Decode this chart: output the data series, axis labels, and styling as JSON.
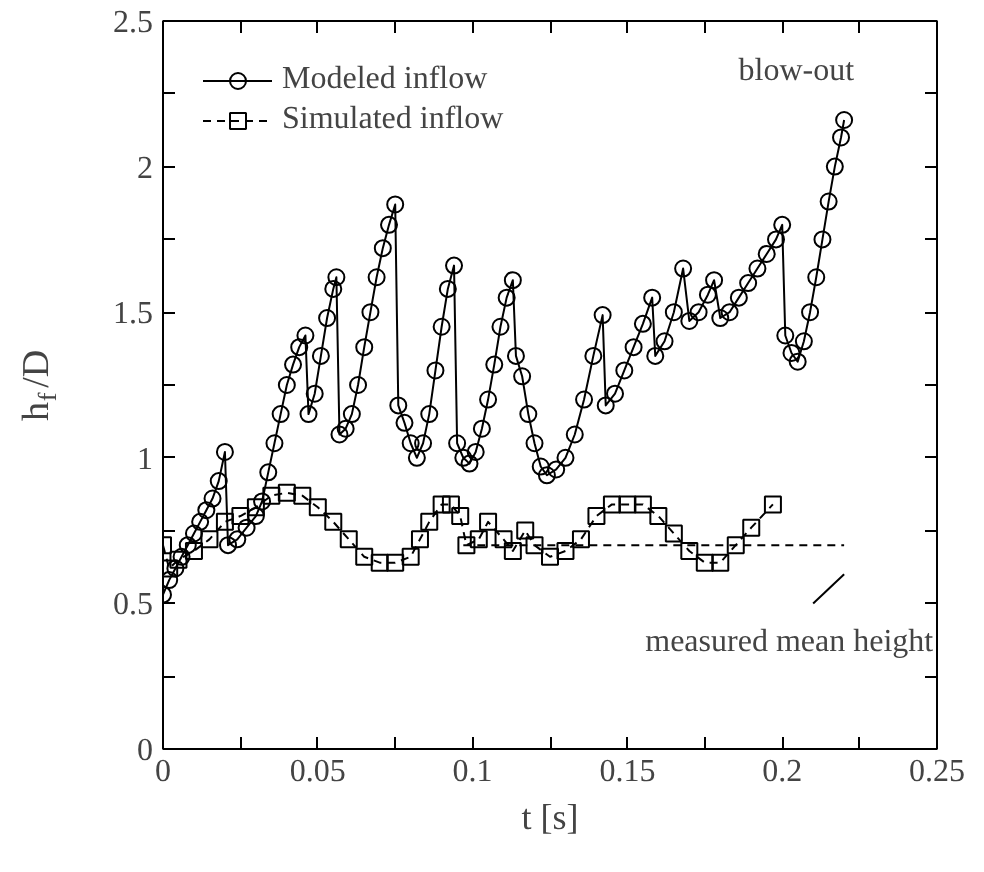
{
  "chart_data": {
    "type": "line",
    "xlabel": "t [s]",
    "ylabel": "h$_{f}$/D",
    "xlim": [
      0,
      0.25
    ],
    "ylim": [
      0,
      2.5
    ],
    "xticks": [
      0,
      {
        "value": 0.025,
        "label": null
      },
      0.05,
      {
        "value": 0.075,
        "label": null
      },
      0.1,
      {
        "value": 0.125,
        "label": null
      },
      0.15,
      {
        "value": 0.175,
        "label": null
      },
      0.2,
      {
        "value": 0.225,
        "label": null
      },
      0.25
    ],
    "yticks": [
      0,
      {
        "value": 0.25,
        "label": null
      },
      0.5,
      {
        "value": 0.75,
        "label": null
      },
      1,
      {
        "value": 1.25,
        "label": null
      },
      1.5,
      {
        "value": 1.75,
        "label": null
      },
      2,
      {
        "value": 2.25,
        "label": null
      },
      2.5
    ],
    "grid": false,
    "legend": "top left",
    "series": [
      {
        "name": "Modeled inflow",
        "color": "#000000",
        "marker": "circle",
        "line_style": "solid",
        "x": [
          0,
          0.002,
          0.004,
          0.006,
          0.008,
          0.01,
          0.012,
          0.014,
          0.016,
          0.018,
          0.02,
          0.021,
          0.024,
          0.027,
          0.03,
          0.032,
          0.034,
          0.036,
          0.038,
          0.04,
          0.042,
          0.044,
          0.046,
          0.047,
          0.049,
          0.051,
          0.053,
          0.055,
          0.056,
          0.057,
          0.059,
          0.061,
          0.063,
          0.065,
          0.067,
          0.069,
          0.071,
          0.073,
          0.075,
          0.076,
          0.078,
          0.08,
          0.082,
          0.084,
          0.086,
          0.088,
          0.09,
          0.092,
          0.094,
          0.095,
          0.097,
          0.099,
          0.101,
          0.103,
          0.105,
          0.107,
          0.109,
          0.111,
          0.113,
          0.114,
          0.116,
          0.118,
          0.12,
          0.122,
          0.124,
          0.127,
          0.13,
          0.133,
          0.136,
          0.139,
          0.142,
          0.143,
          0.146,
          0.149,
          0.152,
          0.155,
          0.158,
          0.159,
          0.162,
          0.165,
          0.168,
          0.17,
          0.173,
          0.176,
          0.178,
          0.18,
          0.183,
          0.186,
          0.189,
          0.192,
          0.195,
          0.198,
          0.2,
          0.201,
          0.203,
          0.205,
          0.207,
          0.209,
          0.211,
          0.213,
          0.215,
          0.217,
          0.219,
          0.22
        ],
        "values": [
          0.53,
          0.58,
          0.62,
          0.66,
          0.7,
          0.74,
          0.78,
          0.82,
          0.86,
          0.92,
          1.02,
          0.7,
          0.72,
          0.76,
          0.8,
          0.85,
          0.95,
          1.05,
          1.15,
          1.25,
          1.32,
          1.38,
          1.42,
          1.15,
          1.22,
          1.35,
          1.48,
          1.58,
          1.62,
          1.08,
          1.1,
          1.15,
          1.25,
          1.38,
          1.5,
          1.62,
          1.72,
          1.8,
          1.87,
          1.18,
          1.12,
          1.05,
          1.0,
          1.05,
          1.15,
          1.3,
          1.45,
          1.58,
          1.66,
          1.05,
          1.0,
          0.98,
          1.02,
          1.1,
          1.2,
          1.32,
          1.45,
          1.55,
          1.61,
          1.35,
          1.28,
          1.15,
          1.05,
          0.97,
          0.94,
          0.96,
          1.0,
          1.08,
          1.2,
          1.35,
          1.49,
          1.18,
          1.22,
          1.3,
          1.38,
          1.46,
          1.55,
          1.35,
          1.4,
          1.5,
          1.65,
          1.47,
          1.5,
          1.56,
          1.61,
          1.48,
          1.5,
          1.55,
          1.6,
          1.65,
          1.7,
          1.75,
          1.8,
          1.42,
          1.36,
          1.33,
          1.4,
          1.5,
          1.62,
          1.75,
          1.88,
          2.0,
          2.1,
          2.16
        ]
      },
      {
        "name": "Simulated inflow",
        "color": "#000000",
        "marker": "square",
        "line_style": "dashed",
        "x": [
          0,
          0.002,
          0.005,
          0.01,
          0.015,
          0.02,
          0.025,
          0.03,
          0.035,
          0.04,
          0.045,
          0.05,
          0.055,
          0.06,
          0.065,
          0.07,
          0.075,
          0.08,
          0.083,
          0.086,
          0.09,
          0.093,
          0.096,
          0.098,
          0.102,
          0.105,
          0.11,
          0.113,
          0.117,
          0.12,
          0.125,
          0.13,
          0.135,
          0.14,
          0.145,
          0.15,
          0.155,
          0.16,
          0.165,
          0.17,
          0.175,
          0.18,
          0.185,
          0.19,
          0.197
        ],
        "values": [
          0.7,
          0.62,
          0.65,
          0.68,
          0.72,
          0.78,
          0.8,
          0.83,
          0.87,
          0.88,
          0.87,
          0.83,
          0.78,
          0.72,
          0.66,
          0.64,
          0.64,
          0.66,
          0.72,
          0.78,
          0.84,
          0.84,
          0.8,
          0.7,
          0.72,
          0.78,
          0.72,
          0.68,
          0.75,
          0.7,
          0.66,
          0.68,
          0.72,
          0.8,
          0.84,
          0.84,
          0.84,
          0.8,
          0.74,
          0.68,
          0.64,
          0.64,
          0.7,
          0.76,
          0.84
        ]
      },
      {
        "color": "#000000",
        "marker": "none",
        "line_style": "dashed",
        "x": [
          0.097,
          0.22
        ],
        "values": [
          0.7,
          0.7
        ]
      }
    ],
    "annotations": [
      {
        "text": "blow-out",
        "x": 0.22,
        "y": 2.16
      },
      {
        "text": "measured mean height",
        "x": 0.21,
        "y": 0.7
      }
    ]
  }
}
